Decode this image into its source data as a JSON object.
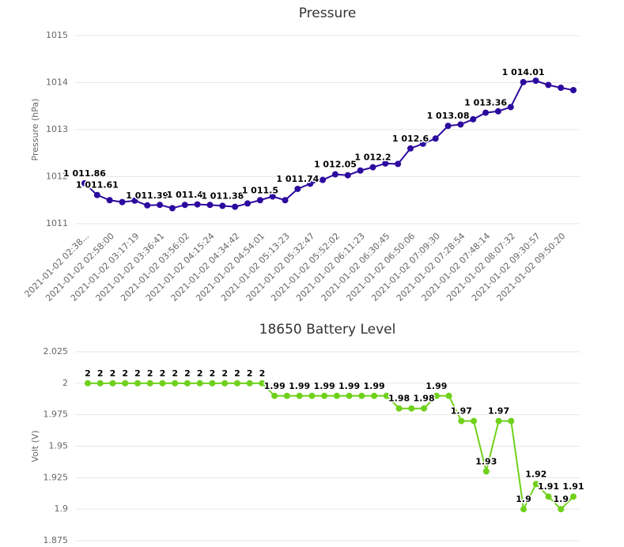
{
  "chart_data": [
    {
      "type": "line",
      "title": "Pressure",
      "y_label": "Pressure (hPa)",
      "categories": [
        "2021-01-02 02:38...",
        null,
        "2021-01-02 02:58:00",
        null,
        "2021-01-02 03:17:19",
        null,
        "2021-01-02 03:36:41",
        null,
        "2021-01-02 03:56:02",
        null,
        "2021-01-02 04:15:24",
        null,
        "2021-01-02 04:34:42",
        null,
        "2021-01-02 04:54:01",
        null,
        "2021-01-02 05:13:23",
        null,
        "2021-01-02 05:32:47",
        null,
        "2021-01-02 05:52:02",
        null,
        "2021-01-02 06:11:23",
        null,
        "2021-01-02 06:30:45",
        null,
        "2021-01-02 06:50:06",
        null,
        "2021-01-02 07:09:30",
        null,
        "2021-01-02 07:28:54",
        null,
        "2021-01-02 07:48:14",
        null,
        "2021-01-02 08:07:32",
        null,
        "2021-01-02 09:30:57",
        null,
        "2021-01-02 09:50:20",
        null
      ],
      "series": [
        {
          "name": "Pressure",
          "color": "#2c0a9e",
          "values": [
            1011.86,
            1011.61,
            1011.5,
            1011.46,
            1011.49,
            1011.39,
            1011.4,
            1011.33,
            1011.4,
            1011.41,
            1011.4,
            1011.38,
            1011.36,
            1011.43,
            1011.5,
            1011.58,
            1011.5,
            1011.74,
            1011.85,
            1011.93,
            1012.05,
            1012.03,
            1012.13,
            1012.2,
            1012.28,
            1012.27,
            1012.6,
            1012.7,
            1012.81,
            1013.08,
            1013.11,
            1013.22,
            1013.36,
            1013.39,
            1013.48,
            1014.01,
            1014.04,
            1013.95,
            1013.89,
            1013.84
          ],
          "value_labels": [
            "1 011.86",
            "1 011.61",
            null,
            null,
            null,
            "1 011.39",
            null,
            null,
            "1 011.4",
            null,
            null,
            "1 011.38",
            null,
            null,
            "1 011.5",
            null,
            null,
            "1 011.74",
            null,
            null,
            "1 012.05",
            null,
            null,
            "1 012.2",
            null,
            null,
            "1 012.6",
            null,
            null,
            "1 013.08",
            null,
            null,
            "1 013.36",
            null,
            null,
            "1 014.01",
            null,
            null,
            null,
            null
          ]
        }
      ],
      "ylim": [
        1011,
        1015
      ],
      "yticks": [
        1011,
        1012,
        1013,
        1014,
        1015
      ],
      "grid": true
    },
    {
      "type": "line",
      "title": "18650 Battery Level",
      "y_label": "Volt (V)",
      "series": [
        {
          "name": "18650 Battery Level",
          "color": "#6fd11b",
          "values": [
            2,
            2,
            2,
            2,
            2,
            2,
            2,
            2,
            2,
            2,
            2,
            2,
            2,
            2,
            2,
            1.99,
            1.99,
            1.99,
            1.99,
            1.99,
            1.99,
            1.99,
            1.99,
            1.99,
            1.99,
            1.98,
            1.98,
            1.98,
            1.99,
            1.99,
            1.97,
            1.97,
            1.93,
            1.97,
            1.97,
            1.9,
            1.92,
            1.91,
            1.9,
            1.91
          ],
          "value_labels": [
            "2",
            "2",
            "2",
            "2",
            "2",
            "2",
            "2",
            "2",
            "2",
            "2",
            "2",
            "2",
            "2",
            "2",
            "2",
            "1.99",
            null,
            "1.99",
            null,
            "1.99",
            null,
            "1.99",
            null,
            "1.99",
            null,
            "1.98",
            null,
            "1.98",
            "1.99",
            null,
            "1.97",
            null,
            "1.93",
            "1.97",
            null,
            "1.9",
            "1.92",
            "1.91",
            "1.9",
            "1.91"
          ]
        }
      ],
      "ylim": [
        1.875,
        2.025
      ],
      "yticks": [
        1.875,
        1.9,
        1.925,
        1.95,
        1.975,
        2,
        2.025
      ],
      "grid": true
    }
  ]
}
